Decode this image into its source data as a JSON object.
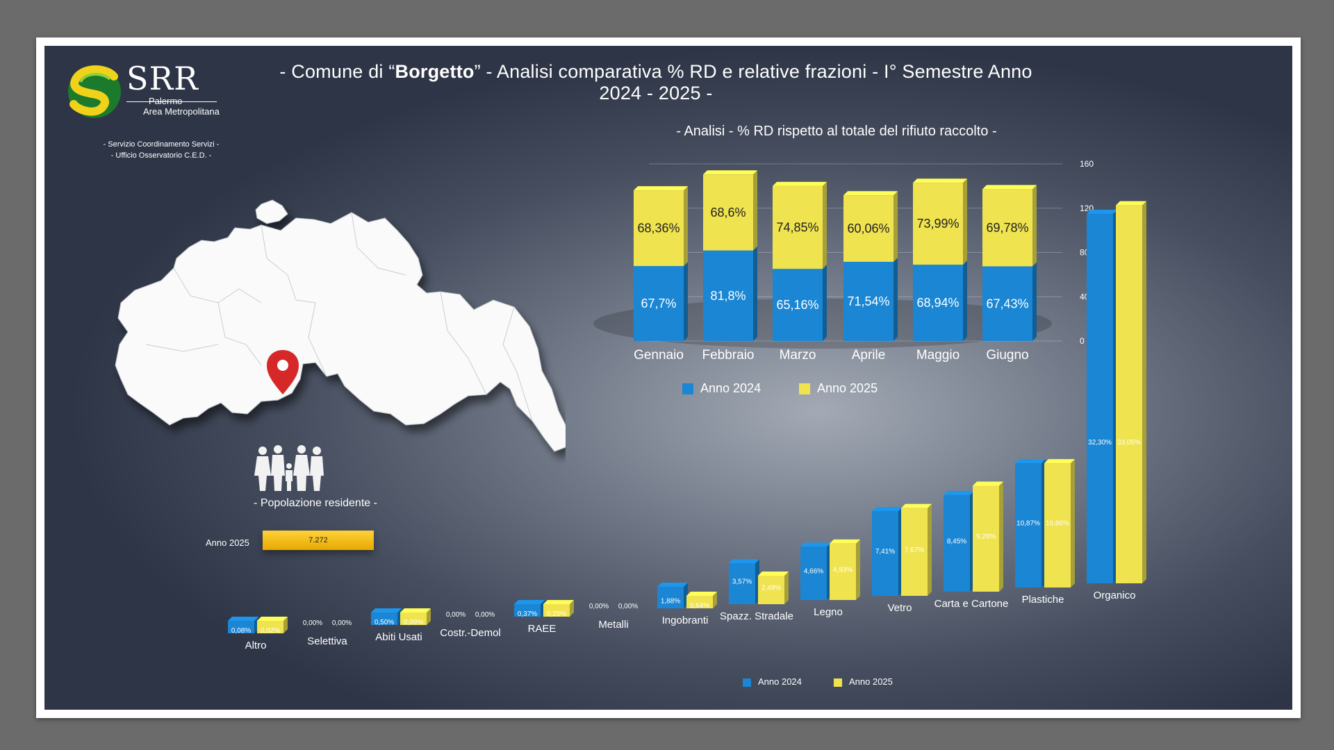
{
  "header": {
    "title_prefix": "- Comune di “",
    "title_name": "Borgetto",
    "title_suffix": "” - Analisi comparativa % RD e relative frazioni - I° Semestre Anno 2024 - 2025 -",
    "subtitle": "- Analisi - % RD rispetto al totale del rifiuto raccolto -"
  },
  "logo": {
    "main": "SRR",
    "line1": "Palermo",
    "line2": "Area Metropolitana",
    "service1": "- Servizio Coordinamento Servizi -",
    "service2": "- Ufficio Osservatorio C.E.D. -"
  },
  "population": {
    "label": "- Popolazione residente -",
    "year": "Anno 2025",
    "value": "7.272"
  },
  "colors": {
    "blue": "#1a86d4",
    "yellow": "#efe34f",
    "pin": "#d62828"
  },
  "icons": [
    "location-pin-icon",
    "family-icon"
  ],
  "chart_data": [
    {
      "type": "bar",
      "stacked": true,
      "categories": [
        "Gennaio",
        "Febbraio",
        "Marzo",
        "Aprile",
        "Maggio",
        "Giugno"
      ],
      "series": [
        {
          "name": "Anno 2024",
          "values": [
            67.7,
            81.8,
            65.16,
            71.54,
            68.94,
            67.43
          ],
          "labels": [
            "67,7%",
            "81,8%",
            "65,16%",
            "71,54%",
            "68,94%",
            "67,43%"
          ]
        },
        {
          "name": "Anno 2025",
          "values": [
            68.36,
            68.6,
            74.85,
            60.06,
            73.99,
            69.78
          ],
          "labels": [
            "68,36%",
            "68,6%",
            "74,85%",
            "60,06%",
            "73,99%",
            "69,78%"
          ]
        }
      ],
      "ylim": [
        0,
        160
      ],
      "yticks": [
        "0",
        "40",
        "80",
        "120",
        "160"
      ],
      "legend": "bottom"
    },
    {
      "type": "bar",
      "categories": [
        "Altro",
        "Selettiva",
        "Abiti Usati",
        "Costr.-Demol",
        "RAEE",
        "Metalli",
        "Ingobranti",
        "Spazz. Stradale",
        "Legno",
        "Vetro",
        "Carta e Cartone",
        "Plastiche",
        "Organico"
      ],
      "series": [
        {
          "name": "Anno 2024",
          "values": [
            0.08,
            0.0,
            0.5,
            0.0,
            0.37,
            0.0,
            1.88,
            3.57,
            4.66,
            7.41,
            8.45,
            10.87,
            32.3
          ],
          "labels": [
            "0,08%",
            "0,00%",
            "0,50%",
            "0,00%",
            "0,37%",
            "0,00%",
            "1,88%",
            "3,57%",
            "4,66%",
            "7,41%",
            "8,45%",
            "10,87%",
            "32,30%"
          ]
        },
        {
          "name": "Anno 2025",
          "values": [
            0.02,
            0.0,
            0.09,
            0.0,
            0.25,
            0.0,
            0.64,
            2.49,
            4.93,
            7.67,
            9.26,
            10.86,
            33.05
          ],
          "labels": [
            "0,02%",
            "0,00%",
            "0,09%",
            "0,00%",
            "0,25%",
            "0,00%",
            "0,64%",
            "2,49%",
            "4,93%",
            "7,67%",
            "9,26%",
            "10,86%",
            "33,05%"
          ]
        }
      ],
      "legend": "bottom"
    }
  ]
}
